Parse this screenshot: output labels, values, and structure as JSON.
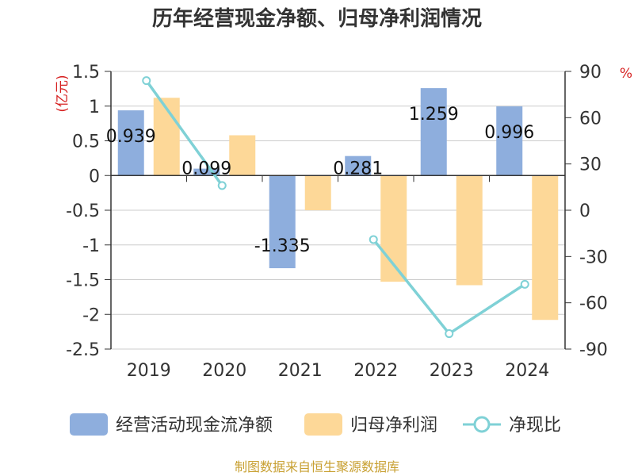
{
  "chart_data": {
    "type": "bar",
    "title": "历年经营现金净额、归母净利润情况",
    "categories": [
      "2019",
      "2020",
      "2021",
      "2022",
      "2023",
      "2024"
    ],
    "ylabel_left": "(亿元)",
    "ylabel_right": "%",
    "ylim_left": [
      -2.5,
      1.5
    ],
    "ylim_right": [
      -90,
      90
    ],
    "left_ticks": [
      "1.5",
      "1",
      "0.5",
      "0",
      "-0.5",
      "-1",
      "-1.5",
      "-2",
      "-2.5"
    ],
    "right_ticks": [
      "90",
      "60",
      "30",
      "0",
      "-30",
      "-60",
      "-90"
    ],
    "grid": true,
    "legend_position": "bottom",
    "series": [
      {
        "name": "经营活动现金流净额",
        "kind": "bar",
        "axis": "left",
        "color": "#8eaedd",
        "values": [
          0.939,
          0.099,
          -1.335,
          0.281,
          1.259,
          0.996
        ],
        "labels": [
          "0.939",
          "0.099",
          "-1.335",
          "0.281",
          "1.259",
          "0.996"
        ]
      },
      {
        "name": "归母净利润",
        "kind": "bar",
        "axis": "left",
        "color": "#fdd898",
        "values": [
          1.12,
          0.58,
          -0.5,
          -1.53,
          -1.58,
          -2.08
        ]
      },
      {
        "name": "净现比",
        "kind": "line",
        "axis": "right",
        "color": "#7fd1d6",
        "values": [
          84,
          16,
          null,
          -19,
          -80,
          -48
        ]
      }
    ]
  },
  "source": "制图数据来自恒生聚源数据库"
}
